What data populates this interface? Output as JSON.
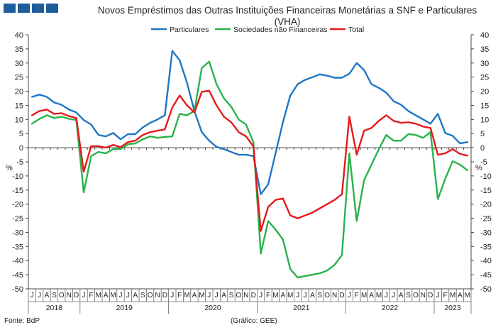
{
  "header": {
    "title_line1": "Novos Empréstimos das Outras Instituições Financeiras Monetárias a SNF e Particulares",
    "title_line2": "(VHA)"
  },
  "footer": {
    "source": "Fonte: BdP",
    "credit": "(Gráfico: GEE)"
  },
  "colors": {
    "particulares": "#1f77c4",
    "snf": "#2ab24a",
    "total": "#e41a1c",
    "grid": "#999999",
    "axis": "#444444"
  },
  "chart_data": {
    "type": "line",
    "title": "Novos Empréstimos das Outras Instituições Financeiras Monetárias a SNF e Particulares (VHA)",
    "ylabel_left": "%",
    "ylabel_right": "%",
    "ylim": [
      -50,
      40
    ],
    "yticks": [
      40,
      35,
      30,
      25,
      20,
      15,
      10,
      5,
      0,
      -5,
      -10,
      -15,
      -20,
      -25,
      -30,
      -35,
      -40,
      -45,
      -50
    ],
    "legend_position": "top-center",
    "month_labels": [
      "J",
      "J",
      "A",
      "S",
      "O",
      "N",
      "D",
      "J",
      "F",
      "M",
      "A",
      "M",
      "J",
      "J",
      "A",
      "S",
      "O",
      "N",
      "D",
      "J",
      "F",
      "M",
      "A",
      "M",
      "J",
      "J",
      "A",
      "S",
      "O",
      "N",
      "D",
      "J",
      "F",
      "M",
      "A",
      "M",
      "J",
      "J",
      "A",
      "S",
      "O",
      "N",
      "D",
      "J",
      "F",
      "M",
      "A",
      "M",
      "J",
      "J",
      "A",
      "S",
      "O",
      "N",
      "D",
      "J",
      "F",
      "M",
      "A",
      "M"
    ],
    "x": [
      "2018-06",
      "2018-07",
      "2018-08",
      "2018-09",
      "2018-10",
      "2018-11",
      "2018-12",
      "2019-01",
      "2019-02",
      "2019-03",
      "2019-04",
      "2019-05",
      "2019-06",
      "2019-07",
      "2019-08",
      "2019-09",
      "2019-10",
      "2019-11",
      "2019-12",
      "2020-01",
      "2020-02",
      "2020-03",
      "2020-04",
      "2020-05",
      "2020-06",
      "2020-07",
      "2020-08",
      "2020-09",
      "2020-10",
      "2020-11",
      "2020-12",
      "2021-01",
      "2021-02",
      "2021-03",
      "2021-04",
      "2021-05",
      "2021-06",
      "2021-07",
      "2021-08",
      "2021-09",
      "2021-10",
      "2021-11",
      "2021-12",
      "2022-01",
      "2022-02",
      "2022-03",
      "2022-04",
      "2022-05",
      "2022-06",
      "2022-07",
      "2022-08",
      "2022-09",
      "2022-10",
      "2022-11",
      "2022-12",
      "2023-01",
      "2023-02",
      "2023-03",
      "2023-04",
      "2023-05"
    ],
    "years": [
      {
        "label": "2018",
        "start": 0,
        "end": 7
      },
      {
        "label": "2019",
        "start": 7,
        "end": 19
      },
      {
        "label": "2020",
        "start": 19,
        "end": 31
      },
      {
        "label": "2021",
        "start": 31,
        "end": 43
      },
      {
        "label": "2022",
        "start": 43,
        "end": 55
      },
      {
        "label": "2023",
        "start": 55,
        "end": 60
      }
    ],
    "series": [
      {
        "name": "Particulares",
        "key": "particulares",
        "values": [
          18,
          18.8,
          18,
          16,
          15.2,
          13.5,
          12.5,
          9.8,
          8.2,
          4.5,
          4,
          5.2,
          3,
          4.8,
          4.8,
          7.2,
          8.8,
          10,
          11.5,
          34.3,
          31,
          23,
          13,
          5.5,
          2.5,
          0.3,
          -0.5,
          -1.5,
          -2.5,
          -2.5,
          -3,
          -16.5,
          -13,
          -2,
          9,
          18.5,
          22.5,
          24,
          25,
          26,
          25.5,
          24.8,
          24.8,
          26.2,
          30,
          27.5,
          22.5,
          21.2,
          19.5,
          16.5,
          15.2,
          13,
          11.5,
          10,
          8.5,
          12,
          5.2,
          4.2,
          1.5,
          2
        ]
      },
      {
        "name": "Sociedades não Financeiras",
        "key": "snf",
        "values": [
          8.5,
          10.2,
          11.5,
          10.5,
          11,
          10.2,
          9.8,
          -15.8,
          -3,
          -1.5,
          -2,
          -0.5,
          -0.5,
          1.2,
          1.5,
          3,
          4,
          3.5,
          3.8,
          4,
          12,
          11.5,
          13,
          28.2,
          30.5,
          22.5,
          17.5,
          14.5,
          10,
          8.2,
          2,
          -37.5,
          -26,
          -29,
          -32.5,
          -43,
          -46,
          -45.5,
          -45,
          -44.5,
          -43.5,
          -41.5,
          -38,
          -2,
          -26,
          -11.5,
          -6,
          -0.5,
          4.5,
          2.5,
          2.5,
          4.8,
          4.5,
          3.5,
          5.5,
          -18.2,
          -11,
          -4.8,
          -6,
          -8
        ]
      },
      {
        "name": "Total",
        "key": "total",
        "values": [
          11.5,
          13,
          13.5,
          12,
          12.2,
          11.2,
          10.5,
          -8.5,
          0.5,
          0.5,
          0,
          1,
          0.2,
          2,
          2.5,
          4.5,
          5.5,
          6,
          6.5,
          14.2,
          18.5,
          15,
          12.5,
          19.8,
          20.2,
          15,
          11,
          9,
          5.5,
          4,
          0.5,
          -29.5,
          -21,
          -18.5,
          -18,
          -24,
          -25,
          -24,
          -23,
          -21.5,
          -20,
          -18.5,
          -16.5,
          11,
          -2.5,
          6,
          7,
          9.5,
          11.5,
          9.5,
          8.8,
          9,
          8.5,
          7.5,
          7,
          -2.5,
          -2,
          -0.5,
          -2.2,
          -2.8
        ]
      }
    ]
  }
}
